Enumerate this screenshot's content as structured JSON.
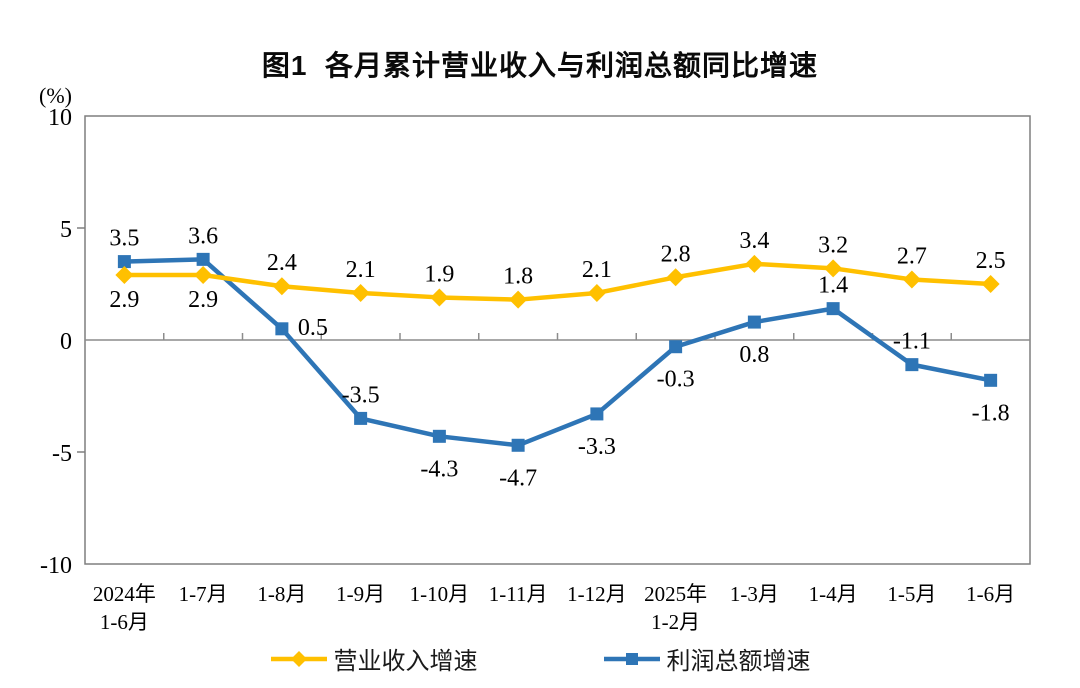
{
  "chart_data": {
    "type": "line",
    "title": "图1  各月累计营业收入与利润总额同比增速",
    "unit_label": "(%)",
    "categories": [
      [
        "2024年",
        "1-6月"
      ],
      [
        "1-7月"
      ],
      [
        "1-8月"
      ],
      [
        "1-9月"
      ],
      [
        "1-10月"
      ],
      [
        "1-11月"
      ],
      [
        "1-12月"
      ],
      [
        "2025年",
        "1-2月"
      ],
      [
        "1-3月"
      ],
      [
        "1-4月"
      ],
      [
        "1-5月"
      ],
      [
        "1-6月"
      ]
    ],
    "y_axis": {
      "min": -10,
      "max": 10,
      "ticks": [
        10,
        5,
        0,
        -5,
        -10
      ]
    },
    "grid": "off",
    "legend_position": "bottom",
    "frame_color": "#7f7f7f",
    "axis_color": "#8c8c8c",
    "label_color": "#000000",
    "series": [
      {
        "id": "revenue",
        "name": "营业收入增速",
        "color": "#FFC000",
        "marker": "diamond",
        "values": [
          2.9,
          2.9,
          2.4,
          2.1,
          1.9,
          1.8,
          2.1,
          2.8,
          3.4,
          3.2,
          2.7,
          2.5
        ],
        "label_positions": [
          "below",
          "below",
          "above",
          "above",
          "above",
          "above",
          "above",
          "above",
          "above",
          "above",
          "above",
          "above"
        ]
      },
      {
        "id": "profit",
        "name": "利润总额增速",
        "color": "#2E75B6",
        "marker": "square",
        "values": [
          3.5,
          3.6,
          0.5,
          -3.5,
          -4.3,
          -4.7,
          -3.3,
          -0.3,
          0.8,
          1.4,
          -1.1,
          -1.8
        ],
        "label_positions": [
          "above",
          "above",
          "right",
          "above",
          "below",
          "below",
          "below",
          "below",
          "below",
          "above",
          "above",
          "below"
        ]
      }
    ]
  }
}
